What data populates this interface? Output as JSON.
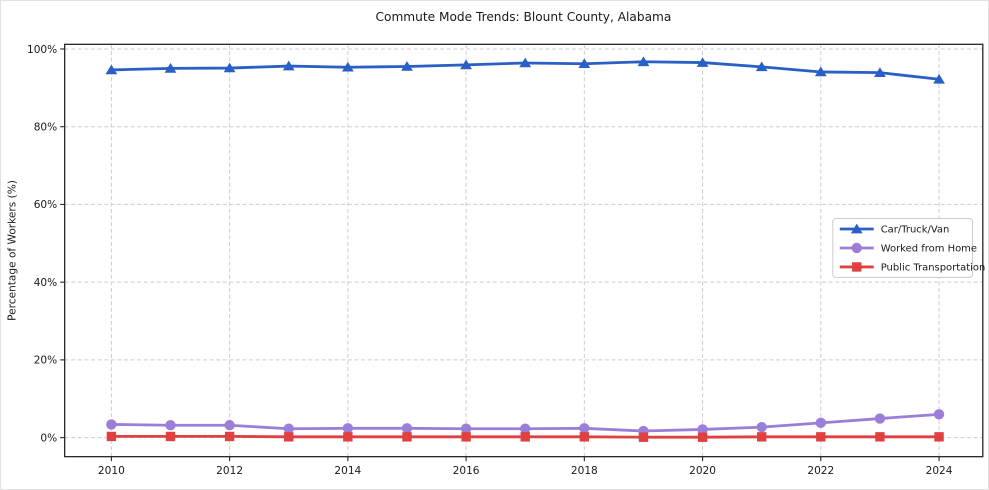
{
  "chart_data": {
    "type": "line",
    "title": "Commute Mode Trends: Blount County, Alabama",
    "xlabel": "",
    "ylabel": "Percentage of Workers (%)",
    "x": [
      2010,
      2011,
      2012,
      2013,
      2014,
      2015,
      2016,
      2017,
      2018,
      2019,
      2020,
      2021,
      2022,
      2023,
      2024
    ],
    "series": [
      {
        "name": "Car/Truck/Van",
        "marker": "triangle",
        "color": "#2a5fc5",
        "values": [
          94.6,
          95.0,
          95.1,
          95.6,
          95.3,
          95.5,
          95.9,
          96.4,
          96.2,
          96.7,
          96.5,
          95.4,
          94.1,
          93.9,
          92.2
        ]
      },
      {
        "name": "Worked from Home",
        "marker": "circle",
        "color": "#9b7ed8",
        "values": [
          3.4,
          3.2,
          3.2,
          2.3,
          2.4,
          2.4,
          2.3,
          2.3,
          2.4,
          1.7,
          2.1,
          2.7,
          3.8,
          4.9,
          6.0
        ]
      },
      {
        "name": "Public Transportation",
        "marker": "square",
        "color": "#e04040",
        "values": [
          0.3,
          0.3,
          0.3,
          0.2,
          0.2,
          0.2,
          0.2,
          0.2,
          0.2,
          0.1,
          0.1,
          0.2,
          0.2,
          0.2,
          0.2
        ]
      }
    ],
    "xticks": [
      2010,
      2012,
      2014,
      2016,
      2018,
      2020,
      2022,
      2024
    ],
    "xtick_labels": [
      "2010",
      "2012",
      "2014",
      "2016",
      "2018",
      "2020",
      "2022",
      "2024"
    ],
    "yticks": [
      0,
      20,
      40,
      60,
      80,
      100
    ],
    "ytick_labels": [
      "0%",
      "20%",
      "40%",
      "60%",
      "80%",
      "100%"
    ],
    "xlim": [
      2009.21,
      2024.74
    ],
    "ylim": [
      -4.9,
      101.2
    ],
    "grid": true,
    "legend_position": "center right",
    "colors": {
      "grid": "#cdcdcd",
      "spine": "#262626",
      "text": "#1a1a1a",
      "legend_border": "#cccccc",
      "background": "#ffffff"
    }
  }
}
